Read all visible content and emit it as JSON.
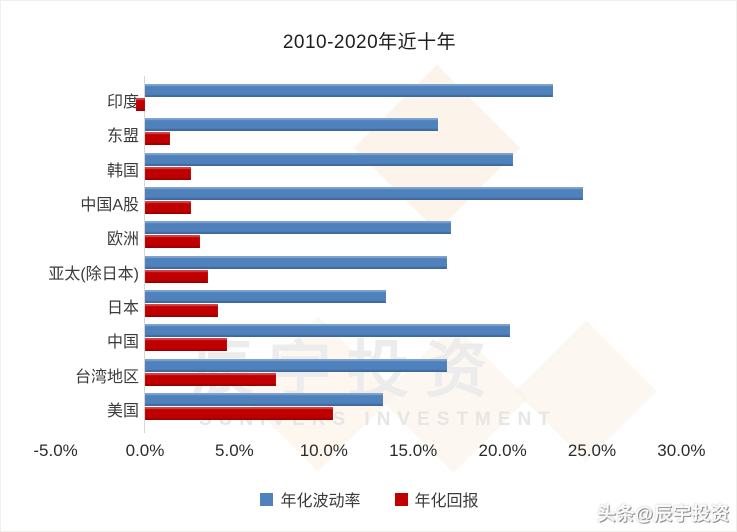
{
  "title": "2010-2020年近十年",
  "chart_data": {
    "type": "bar",
    "orientation": "horizontal",
    "title": "2010-2020年近十年",
    "categories": [
      "印度",
      "东盟",
      "韩国",
      "中国A股",
      "欧洲",
      "亚太(除日本)",
      "日本",
      "中国",
      "台湾地区",
      "美国"
    ],
    "series": [
      {
        "key": "volatility",
        "name": "年化波动率",
        "color": "#4f81bd",
        "values": [
          22.8,
          16.4,
          20.6,
          24.5,
          17.1,
          16.9,
          13.5,
          20.4,
          16.9,
          13.3
        ]
      },
      {
        "key": "return",
        "name": "年化回报",
        "color": "#c00000",
        "values": [
          -0.5,
          1.4,
          2.6,
          2.6,
          3.1,
          3.5,
          4.1,
          4.6,
          7.3,
          10.5
        ]
      }
    ],
    "xlim": [
      -5,
      30
    ],
    "x_tick_values": [
      -5,
      0,
      5,
      10,
      15,
      20,
      25,
      30
    ],
    "x_ticks": [
      "-5.0%",
      "0.0%",
      "5.0%",
      "10.0%",
      "15.0%",
      "20.0%",
      "25.0%",
      "30.0%"
    ],
    "unit": "%",
    "grid": false,
    "legend_position": "bottom"
  },
  "watermark": {
    "cn": "辰宇投资",
    "en": "SUNIVERS INVESTMENT"
  },
  "corner_watermark": "头条@辰宇投资"
}
